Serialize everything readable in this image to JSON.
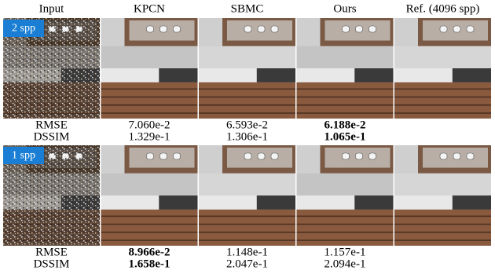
{
  "columns": [
    "Input",
    "KPCN",
    "SBMC",
    "Ours",
    "Ref. (4096 spp)"
  ],
  "rows": [
    {
      "badge": "2 spp",
      "metrics": [
        {
          "name": "RMSE",
          "values": [
            "7.060e-2",
            "6.593e-2",
            "6.188e-2"
          ],
          "best": 2
        },
        {
          "name": "DSSIM",
          "values": [
            "1.329e-1",
            "1.306e-1",
            "1.065e-1"
          ],
          "best": 2
        }
      ]
    },
    {
      "badge": "1 spp",
      "metrics": [
        {
          "name": "RMSE",
          "values": [
            "8.966e-2",
            "1.148e-1",
            "1.157e-1"
          ],
          "best": 0
        },
        {
          "name": "DSSIM",
          "values": [
            "1.658e-1",
            "2.047e-1",
            "2.094e-1"
          ],
          "best": 0
        }
      ]
    }
  ]
}
